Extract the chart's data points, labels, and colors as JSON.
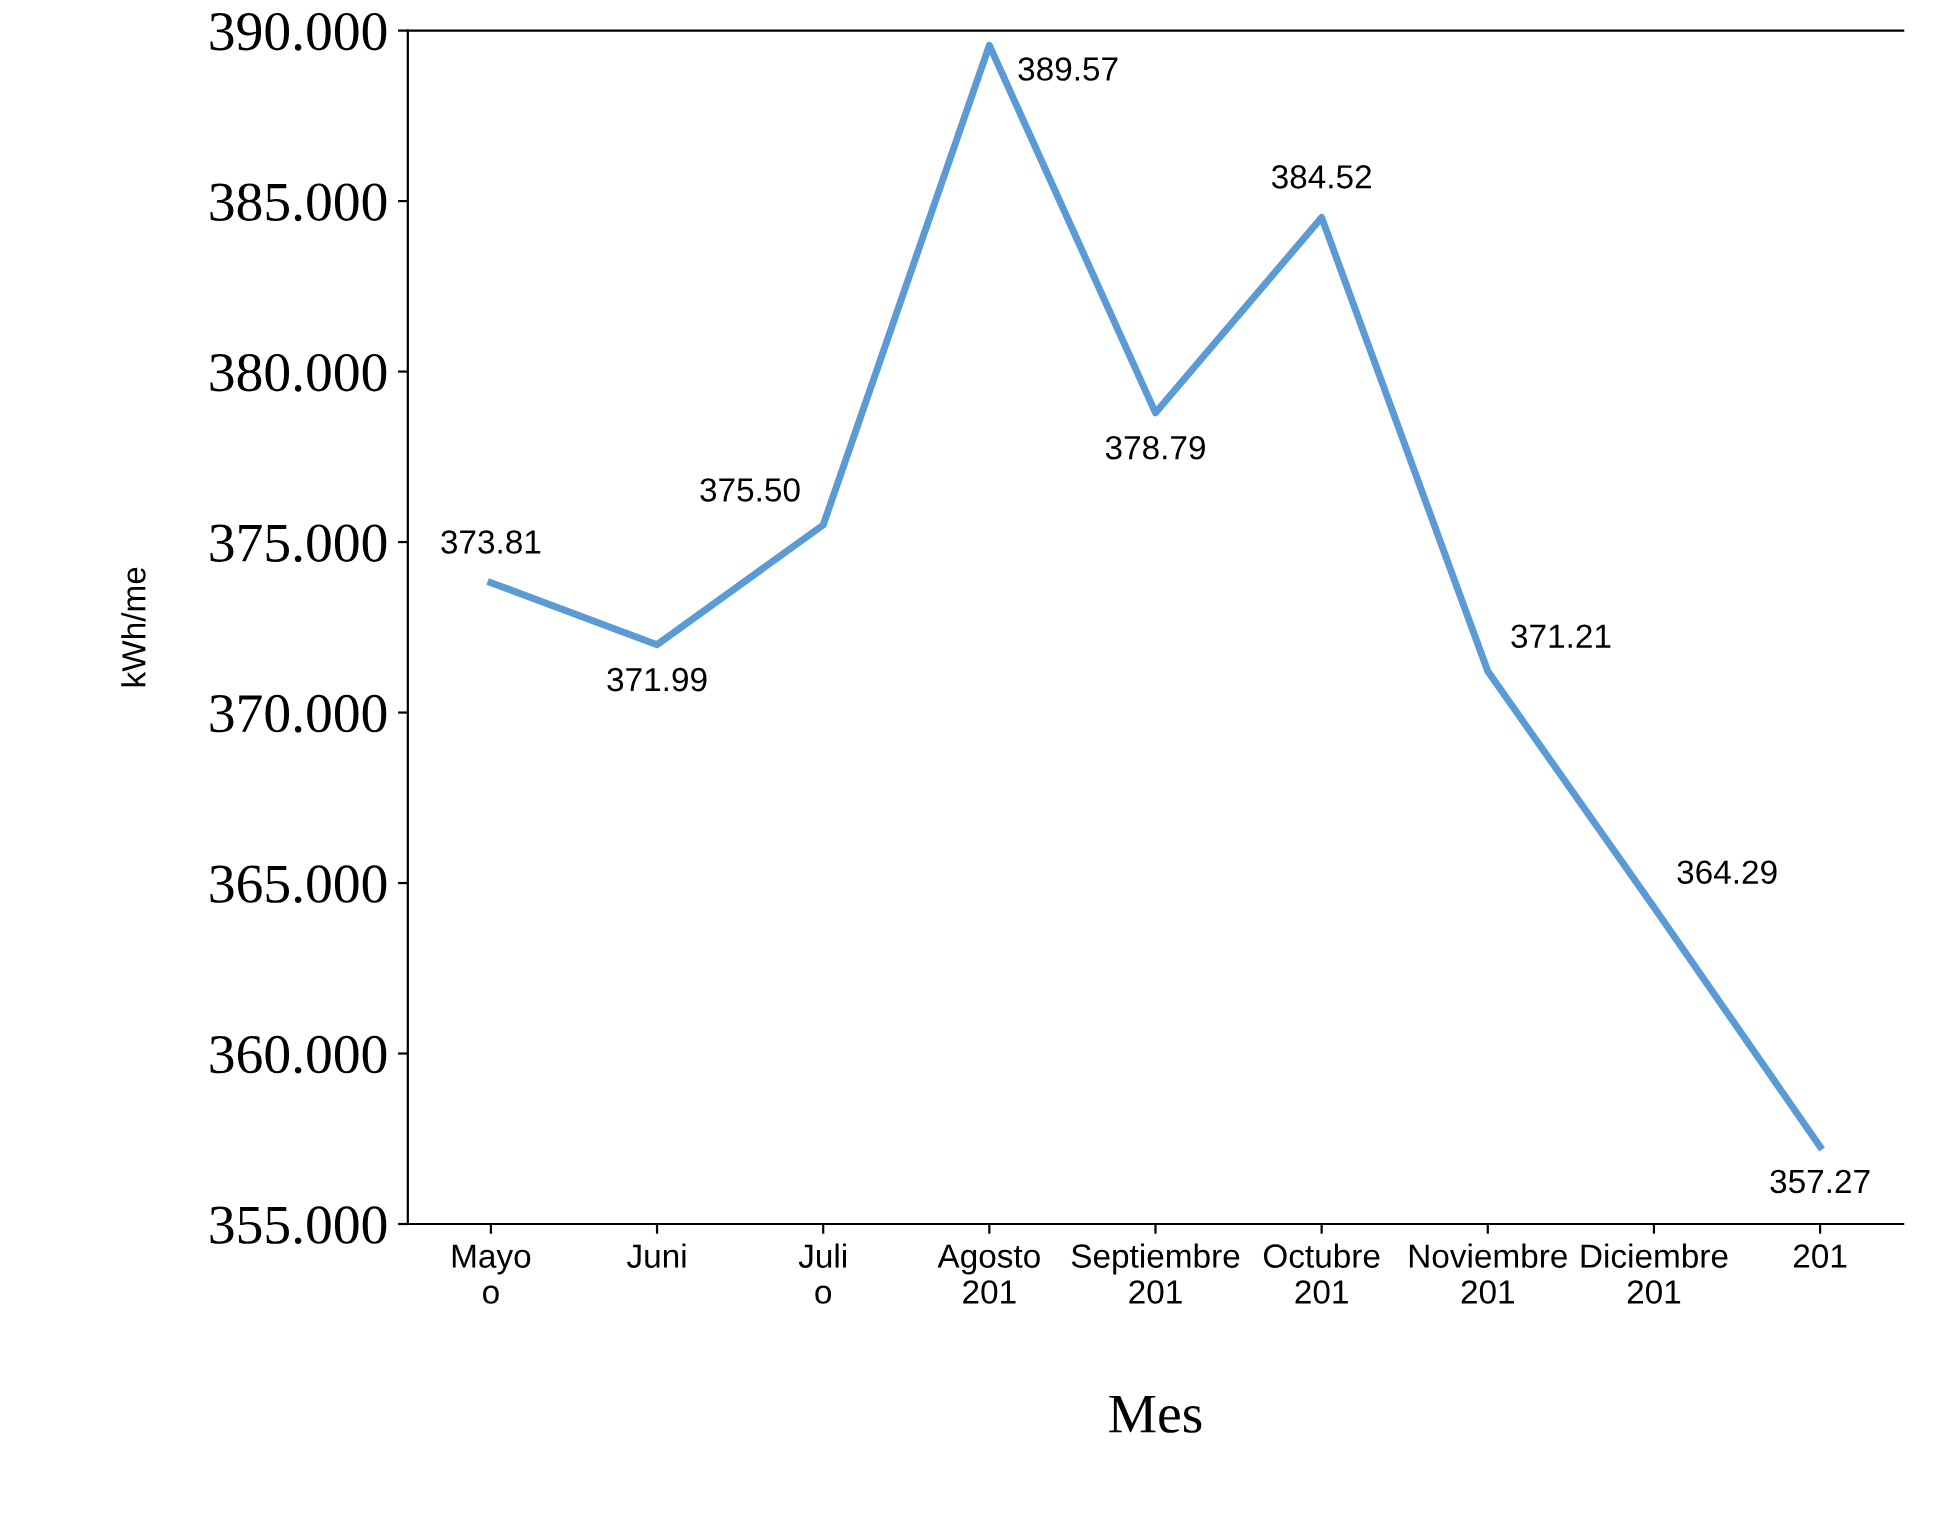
{
  "chart_data": {
    "type": "line",
    "xlabel": "Mes",
    "ylabel": "kWh/me",
    "categories": [
      "Mayo\no",
      "Juni",
      "Juli\no",
      "Agosto\n201",
      "Septiembre\n201",
      "Octubre\n201",
      "Noviembre\n201",
      "Diciembre\n201",
      "201"
    ],
    "series": [
      {
        "color": "#5b9bd5",
        "values": [
          373.81,
          371.99,
          375.5,
          389.57,
          378.79,
          384.52,
          371.21,
          364.29,
          357.27
        ],
        "value_labels": [
          "373.81",
          "371.99",
          "375.50",
          "389.57",
          "378.79",
          "384.52",
          "371.21",
          "364.29",
          "357.27"
        ]
      }
    ],
    "ylim": [
      355,
      390
    ],
    "yticks": [
      {
        "value": 355,
        "label": "355.000"
      },
      {
        "value": 360,
        "label": "360.000"
      },
      {
        "value": 365,
        "label": "365.000"
      },
      {
        "value": 370,
        "label": "370.000"
      },
      {
        "value": 375,
        "label": "375.000"
      },
      {
        "value": 380,
        "label": "380.000"
      },
      {
        "value": 385,
        "label": "385.000"
      },
      {
        "value": 390,
        "label": "390.000"
      }
    ],
    "grid": false,
    "legend": false,
    "marker": "none",
    "line_style": "solid"
  }
}
